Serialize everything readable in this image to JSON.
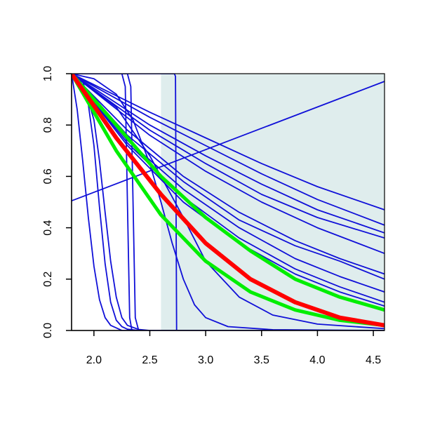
{
  "chart_data": {
    "type": "line",
    "title": "",
    "xlabel": "",
    "ylabel": "",
    "xlim": [
      1.8,
      4.6
    ],
    "ylim": [
      0.0,
      1.0
    ],
    "x_ticks": [
      2.0,
      2.5,
      3.0,
      3.5,
      4.0,
      4.5
    ],
    "x_tick_labels": [
      "2.0",
      "2.5",
      "3.0",
      "3.5",
      "4.0",
      "4.5"
    ],
    "y_ticks": [
      0.0,
      0.2,
      0.4,
      0.6,
      0.8,
      1.0
    ],
    "y_tick_labels": [
      "0.0",
      "0.2",
      "0.4",
      "0.6",
      "0.8",
      "1.0"
    ],
    "grid": false,
    "legend": "none",
    "shaded_region": {
      "x0": 2.6,
      "x1": 4.6,
      "color": "#dfeded"
    },
    "colors": {
      "blue": "#1010d8",
      "red": "#ff0000",
      "green": "#00ee00"
    },
    "series": [
      {
        "color": "blue",
        "width": 1.8,
        "x": [
          1.8,
          4.6
        ],
        "y": [
          0.505,
          0.97
        ]
      },
      {
        "color": "blue",
        "width": 1.8,
        "x": [
          1.8,
          2.72,
          2.73,
          2.74,
          4.6
        ],
        "y": [
          1.0,
          1.0,
          0.99,
          0.0,
          0.0
        ]
      },
      {
        "color": "blue",
        "width": 1.8,
        "x": [
          1.8,
          2.25,
          2.28,
          2.3,
          2.32,
          2.34,
          4.6
        ],
        "y": [
          1.0,
          1.0,
          0.95,
          0.5,
          0.05,
          0.0,
          0.0
        ]
      },
      {
        "color": "blue",
        "width": 1.8,
        "x": [
          1.8,
          2.3,
          2.33,
          2.35,
          2.37,
          2.4,
          4.6
        ],
        "y": [
          1.0,
          1.0,
          0.95,
          0.5,
          0.05,
          0.0,
          0.0
        ]
      },
      {
        "color": "blue",
        "width": 1.8,
        "x": [
          1.8,
          1.85,
          1.9,
          1.95,
          2.0,
          2.05,
          2.1,
          2.15,
          2.2,
          2.25,
          2.3,
          4.6
        ],
        "y": [
          1.0,
          0.86,
          0.66,
          0.44,
          0.25,
          0.12,
          0.05,
          0.02,
          0.01,
          0.0,
          0.0,
          0.0
        ]
      },
      {
        "color": "blue",
        "width": 1.8,
        "x": [
          1.8,
          1.9,
          1.95,
          2.0,
          2.05,
          2.1,
          2.15,
          2.2,
          2.25,
          2.3,
          2.4,
          4.6
        ],
        "y": [
          1.0,
          0.95,
          0.88,
          0.72,
          0.48,
          0.26,
          0.11,
          0.04,
          0.015,
          0.005,
          0.0,
          0.0
        ]
      },
      {
        "color": "blue",
        "width": 1.8,
        "x": [
          1.8,
          1.9,
          2.0,
          2.05,
          2.1,
          2.15,
          2.2,
          2.25,
          2.3,
          2.4,
          2.5,
          4.6
        ],
        "y": [
          1.0,
          0.97,
          0.82,
          0.66,
          0.46,
          0.27,
          0.13,
          0.05,
          0.02,
          0.004,
          0.0,
          0.0
        ]
      },
      {
        "color": "blue",
        "width": 1.8,
        "x": [
          1.8,
          2.0,
          2.2,
          2.35,
          2.5,
          2.6,
          2.7,
          2.8,
          2.9,
          3.0,
          3.2,
          3.6,
          4.6
        ],
        "y": [
          1.0,
          0.98,
          0.92,
          0.82,
          0.65,
          0.5,
          0.34,
          0.2,
          0.1,
          0.05,
          0.015,
          0.003,
          0.0
        ]
      },
      {
        "color": "blue",
        "width": 1.8,
        "x": [
          1.8,
          2.2,
          2.5,
          2.8,
          3.0,
          3.3,
          3.6,
          4.0,
          4.6
        ],
        "y": [
          1.0,
          0.87,
          0.68,
          0.44,
          0.27,
          0.13,
          0.06,
          0.025,
          0.007
        ]
      },
      {
        "color": "blue",
        "width": 1.8,
        "x": [
          1.8,
          2.5,
          3.0,
          3.5,
          4.0,
          4.6
        ],
        "y": [
          1.0,
          0.85,
          0.75,
          0.65,
          0.56,
          0.47
        ]
      },
      {
        "color": "blue",
        "width": 1.8,
        "x": [
          1.8,
          2.5,
          3.0,
          3.5,
          4.0,
          4.6
        ],
        "y": [
          1.0,
          0.83,
          0.72,
          0.61,
          0.51,
          0.41
        ]
      },
      {
        "color": "blue",
        "width": 1.8,
        "x": [
          1.8,
          2.5,
          3.0,
          3.5,
          4.0,
          4.6
        ],
        "y": [
          1.0,
          0.8,
          0.68,
          0.57,
          0.47,
          0.38
        ]
      },
      {
        "color": "blue",
        "width": 1.8,
        "x": [
          1.8,
          2.5,
          3.0,
          3.5,
          4.0,
          4.6
        ],
        "y": [
          1.0,
          0.78,
          0.65,
          0.53,
          0.44,
          0.36
        ]
      },
      {
        "color": "blue",
        "width": 1.8,
        "x": [
          1.8,
          2.5,
          3.0,
          3.5,
          4.0,
          4.6
        ],
        "y": [
          1.0,
          0.76,
          0.62,
          0.5,
          0.4,
          0.3
        ]
      },
      {
        "color": "blue",
        "width": 1.8,
        "x": [
          1.8,
          2.3,
          2.8,
          3.3,
          3.8,
          4.2,
          4.6
        ],
        "y": [
          1.0,
          0.78,
          0.6,
          0.46,
          0.35,
          0.28,
          0.22
        ]
      },
      {
        "color": "blue",
        "width": 1.8,
        "x": [
          1.8,
          2.3,
          2.8,
          3.3,
          3.8,
          4.2,
          4.6
        ],
        "y": [
          1.0,
          0.76,
          0.58,
          0.43,
          0.33,
          0.27,
          0.2
        ]
      },
      {
        "color": "blue",
        "width": 1.8,
        "x": [
          1.8,
          2.3,
          2.8,
          3.3,
          3.8,
          4.2,
          4.6
        ],
        "y": [
          1.0,
          0.74,
          0.55,
          0.4,
          0.28,
          0.21,
          0.15
        ]
      },
      {
        "color": "blue",
        "width": 1.8,
        "x": [
          1.8,
          2.3,
          2.8,
          3.3,
          3.8,
          4.2,
          4.6
        ],
        "y": [
          1.0,
          0.73,
          0.52,
          0.36,
          0.24,
          0.17,
          0.11
        ]
      },
      {
        "color": "blue",
        "width": 1.8,
        "x": [
          1.8,
          2.3,
          2.8,
          3.3,
          3.8,
          4.2,
          4.6
        ],
        "y": [
          1.0,
          0.72,
          0.5,
          0.34,
          0.22,
          0.15,
          0.095
        ]
      },
      {
        "color": "green",
        "width": 5,
        "x": [
          1.8,
          2.2,
          2.6,
          3.0,
          3.4,
          3.8,
          4.2,
          4.6
        ],
        "y": [
          1.0,
          0.8,
          0.6,
          0.44,
          0.31,
          0.2,
          0.13,
          0.08
        ]
      },
      {
        "color": "green",
        "width": 5,
        "x": [
          1.8,
          2.2,
          2.6,
          3.0,
          3.4,
          3.8,
          4.2,
          4.6
        ],
        "y": [
          1.0,
          0.7,
          0.45,
          0.27,
          0.15,
          0.08,
          0.04,
          0.02
        ]
      },
      {
        "color": "red",
        "width": 6,
        "x": [
          1.8,
          2.2,
          2.6,
          3.0,
          3.4,
          3.8,
          4.2,
          4.6
        ],
        "y": [
          1.0,
          0.75,
          0.53,
          0.34,
          0.2,
          0.11,
          0.05,
          0.02
        ]
      }
    ]
  }
}
